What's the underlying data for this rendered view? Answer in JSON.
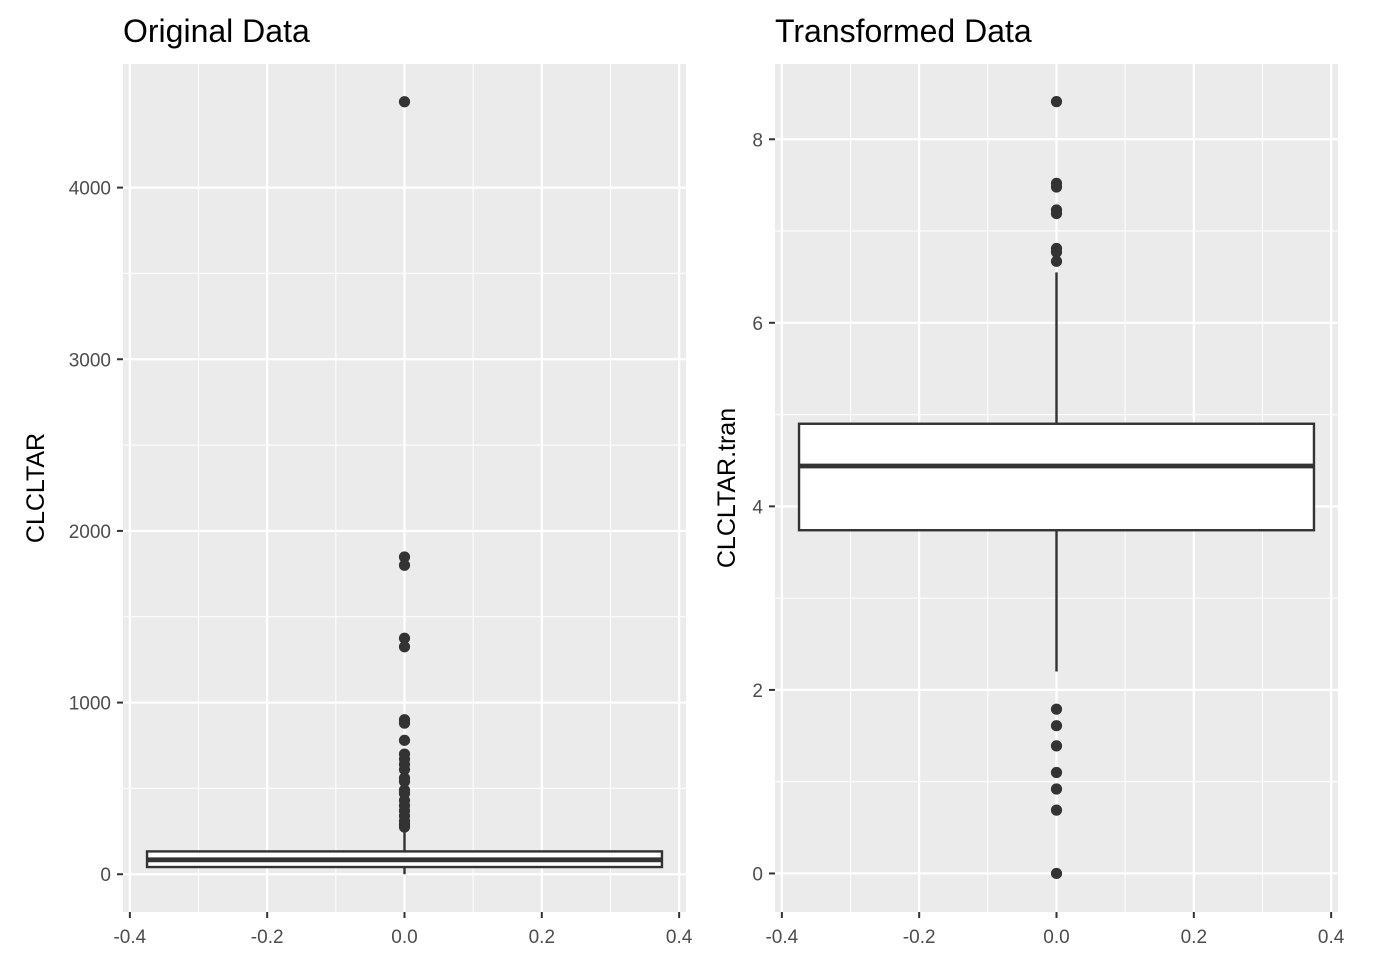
{
  "figure": {
    "panels": [
      "left",
      "right"
    ]
  },
  "chart_data": [
    {
      "type": "boxplot",
      "title": "Original Data",
      "xlabel": "",
      "ylabel": "CLCLTAR",
      "xlim": [
        -0.41,
        0.41
      ],
      "ylim": [
        -220,
        4720
      ],
      "x_ticks": [
        -0.4,
        -0.2,
        0.0,
        0.2,
        0.4
      ],
      "x_tick_labels": [
        "-0.4",
        "-0.2",
        "0.0",
        "0.2",
        "0.4"
      ],
      "y_ticks": [
        0,
        1000,
        2000,
        3000,
        4000
      ],
      "y_tick_labels": [
        "0",
        "1000",
        "2000",
        "3000",
        "4000"
      ],
      "grid": true,
      "box": {
        "x": 0.0,
        "xmin": -0.375,
        "xmax": 0.375,
        "q1": 42,
        "median": 84,
        "q3": 133,
        "whisker_low": 0,
        "whisker_high": 260
      },
      "outliers": [
        4500,
        1848,
        1800,
        1375,
        1325,
        900,
        880,
        780,
        700,
        670,
        640,
        610,
        560,
        540,
        490,
        470,
        430,
        400,
        370,
        340,
        310,
        290,
        275
      ]
    },
    {
      "type": "boxplot",
      "title": "Transformed Data",
      "xlabel": "",
      "ylabel": "CLCLTAR.tran",
      "xlim": [
        -0.41,
        0.41
      ],
      "ylim": [
        -0.42,
        8.82
      ],
      "x_ticks": [
        -0.4,
        -0.2,
        0.0,
        0.2,
        0.4
      ],
      "x_tick_labels": [
        "-0.4",
        "-0.2",
        "0.0",
        "0.2",
        "0.4"
      ],
      "y_ticks": [
        0,
        2,
        4,
        6,
        8
      ],
      "y_tick_labels": [
        "0",
        "2",
        "4",
        "6",
        "8"
      ],
      "grid": true,
      "box": {
        "x": 0.0,
        "xmin": -0.375,
        "xmax": 0.375,
        "q1": 3.74,
        "median": 4.44,
        "q3": 4.9,
        "whisker_low": 2.2,
        "whisker_high": 6.55
      },
      "outliers": [
        8.41,
        7.52,
        7.48,
        7.23,
        7.19,
        6.81,
        6.77,
        6.67,
        1.79,
        1.61,
        1.39,
        1.1,
        0.92,
        0.69,
        0.0
      ]
    }
  ]
}
